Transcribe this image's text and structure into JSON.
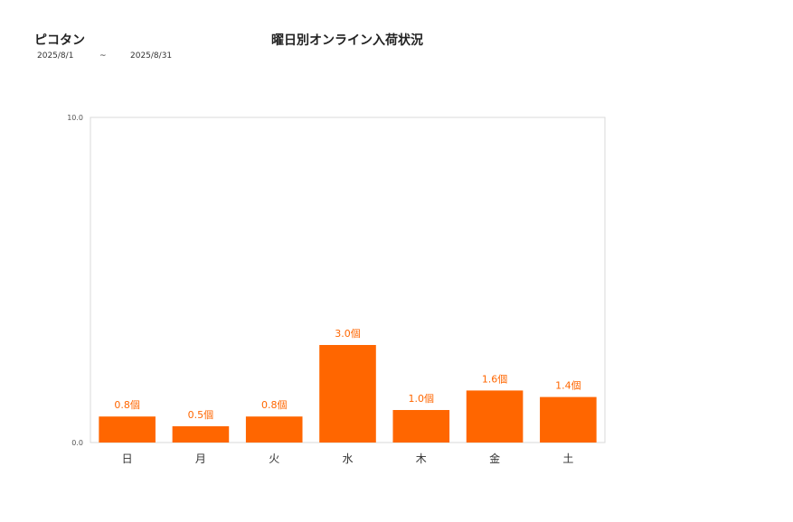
{
  "header": {
    "product_name": "ピコタン",
    "date_from": "2025/8/1",
    "date_sep": "~",
    "date_to": "2025/8/31",
    "title": "曜日別オンライン入荷状況"
  },
  "chart_data": {
    "type": "bar",
    "categories": [
      "日",
      "月",
      "火",
      "水",
      "木",
      "金",
      "土"
    ],
    "values": [
      0.8,
      0.5,
      0.8,
      3.0,
      1.0,
      1.6,
      1.4
    ],
    "data_labels": [
      "0.8個",
      "0.5個",
      "0.8個",
      "3.0個",
      "1.0個",
      "1.6個",
      "1.4個"
    ],
    "ylim": [
      0,
      10
    ],
    "yticks": [
      "0.0",
      "10.0"
    ],
    "bar_color": "#ff6600",
    "label_color": "#ff6600",
    "grid": false,
    "legend": "none"
  }
}
